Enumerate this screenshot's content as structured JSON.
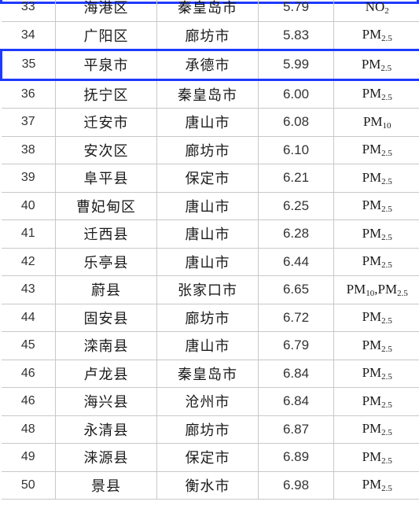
{
  "rows": [
    {
      "rank": "33",
      "county": "海港区",
      "city": "秦皇岛市",
      "value": "5.79",
      "pollutant": [
        {
          "main": "NO",
          "sub": "2"
        }
      ],
      "highlight": false
    },
    {
      "rank": "34",
      "county": "广阳区",
      "city": "廊坊市",
      "value": "5.83",
      "pollutant": [
        {
          "main": "PM",
          "sub": "2.5"
        }
      ],
      "highlight": false
    },
    {
      "rank": "35",
      "county": "平泉市",
      "city": "承德市",
      "value": "5.99",
      "pollutant": [
        {
          "main": "PM",
          "sub": "2.5"
        }
      ],
      "highlight": true
    },
    {
      "rank": "36",
      "county": "抚宁区",
      "city": "秦皇岛市",
      "value": "6.00",
      "pollutant": [
        {
          "main": "PM",
          "sub": "2.5"
        }
      ],
      "highlight": false
    },
    {
      "rank": "37",
      "county": "迁安市",
      "city": "唐山市",
      "value": "6.08",
      "pollutant": [
        {
          "main": "PM",
          "sub": "10"
        }
      ],
      "highlight": false
    },
    {
      "rank": "38",
      "county": "安次区",
      "city": "廊坊市",
      "value": "6.10",
      "pollutant": [
        {
          "main": "PM",
          "sub": "2.5"
        }
      ],
      "highlight": false
    },
    {
      "rank": "39",
      "county": "阜平县",
      "city": "保定市",
      "value": "6.21",
      "pollutant": [
        {
          "main": "PM",
          "sub": "2.5"
        }
      ],
      "highlight": false
    },
    {
      "rank": "40",
      "county": "曹妃甸区",
      "city": "唐山市",
      "value": "6.25",
      "pollutant": [
        {
          "main": "PM",
          "sub": "2.5"
        }
      ],
      "highlight": false
    },
    {
      "rank": "41",
      "county": "迁西县",
      "city": "唐山市",
      "value": "6.28",
      "pollutant": [
        {
          "main": "PM",
          "sub": "2.5"
        }
      ],
      "highlight": false
    },
    {
      "rank": "42",
      "county": "乐亭县",
      "city": "唐山市",
      "value": "6.44",
      "pollutant": [
        {
          "main": "PM",
          "sub": "2.5"
        }
      ],
      "highlight": false
    },
    {
      "rank": "43",
      "county": "蔚县",
      "city": "张家口市",
      "value": "6.65",
      "pollutant": [
        {
          "main": "PM",
          "sub": "10"
        },
        {
          "main": ",PM",
          "sub": "2.5"
        }
      ],
      "highlight": false
    },
    {
      "rank": "44",
      "county": "固安县",
      "city": "廊坊市",
      "value": "6.72",
      "pollutant": [
        {
          "main": "PM",
          "sub": "2.5"
        }
      ],
      "highlight": false
    },
    {
      "rank": "45",
      "county": "滦南县",
      "city": "唐山市",
      "value": "6.79",
      "pollutant": [
        {
          "main": "PM",
          "sub": "2.5"
        }
      ],
      "highlight": false
    },
    {
      "rank": "46",
      "county": "卢龙县",
      "city": "秦皇岛市",
      "value": "6.84",
      "pollutant": [
        {
          "main": "PM",
          "sub": "2.5"
        }
      ],
      "highlight": false
    },
    {
      "rank": "46",
      "county": "海兴县",
      "city": "沧州市",
      "value": "6.84",
      "pollutant": [
        {
          "main": "PM",
          "sub": "2.5"
        }
      ],
      "highlight": false
    },
    {
      "rank": "48",
      "county": "永清县",
      "city": "廊坊市",
      "value": "6.87",
      "pollutant": [
        {
          "main": "PM",
          "sub": "2.5"
        }
      ],
      "highlight": false
    },
    {
      "rank": "49",
      "county": "涞源县",
      "city": "保定市",
      "value": "6.89",
      "pollutant": [
        {
          "main": "PM",
          "sub": "2.5"
        }
      ],
      "highlight": false
    },
    {
      "rank": "50",
      "county": "景县",
      "city": "衡水市",
      "value": "6.98",
      "pollutant": [
        {
          "main": "PM",
          "sub": "2.5"
        }
      ],
      "highlight": false
    }
  ],
  "colors": {
    "highlight_border": "#1e3aff",
    "grid_line": "#c8c8c8"
  }
}
